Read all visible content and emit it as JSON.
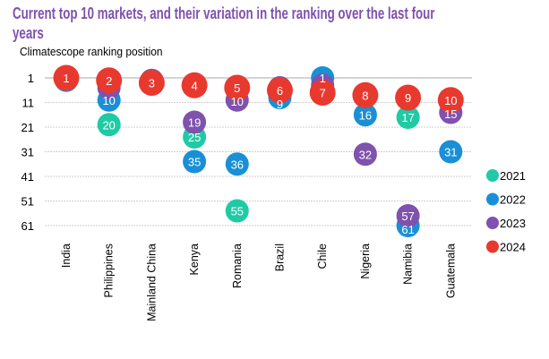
{
  "title": "Current top 10 markets, and their variation in the ranking over the last four years",
  "chart_data": {
    "type": "scatter",
    "title": "Current top 10 markets, and their variation in the ranking over the last four years",
    "ylabel": "Climatescope ranking position",
    "xlabel": "",
    "categories": [
      "India",
      "Philippines",
      "Mainland China",
      "Kenya",
      "Romania",
      "Brazil",
      "Chile",
      "Nigeria",
      "Namibia",
      "Guatemala"
    ],
    "y_ticks": [
      "1",
      "11",
      "21",
      "31",
      "41",
      "51",
      "61"
    ],
    "ylim": [
      1,
      61
    ],
    "y_inverted": true,
    "grid": true,
    "legend": "right",
    "series": [
      {
        "name": "2021",
        "color": "#1fcaa5",
        "values": [
          null,
          20,
          null,
          25,
          55,
          null,
          null,
          null,
          17,
          null
        ],
        "labeled": [
          false,
          true,
          false,
          true,
          true,
          false,
          false,
          false,
          true,
          false
        ]
      },
      {
        "name": "2022",
        "color": "#1a8fd6",
        "values": [
          2,
          10,
          null,
          35,
          36,
          9,
          1,
          16,
          61,
          31
        ],
        "labeled": [
          false,
          true,
          false,
          true,
          true,
          true,
          true,
          true,
          true,
          true
        ]
      },
      {
        "name": "2023",
        "color": "#7e52ad",
        "values": [
          null,
          5,
          2,
          19,
          10,
          5,
          4,
          32,
          57,
          15
        ],
        "labeled": [
          false,
          false,
          false,
          true,
          true,
          false,
          false,
          true,
          true,
          true
        ]
      },
      {
        "name": "2024",
        "color": "#e8392f",
        "values": [
          1,
          2,
          3,
          4,
          5,
          6,
          7,
          8,
          9,
          10
        ],
        "labeled": [
          true,
          true,
          true,
          true,
          true,
          true,
          true,
          true,
          true,
          true
        ]
      }
    ]
  }
}
